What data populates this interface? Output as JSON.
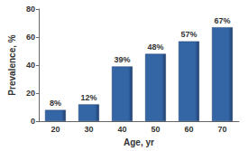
{
  "chart_data": {
    "type": "bar",
    "x_label": "Age, yr",
    "y_label": "Prevalence, %",
    "categories": [
      "20",
      "30",
      "40",
      "50",
      "60",
      "70"
    ],
    "values": [
      8,
      12,
      39,
      48,
      57,
      67
    ],
    "value_labels": [
      "8%",
      "12%",
      "39%",
      "48%",
      "57%",
      "67%"
    ],
    "color": "#3466a6",
    "ylim": [
      0,
      80
    ],
    "yticks": [
      0,
      20,
      40,
      60,
      80
    ],
    "grid": false,
    "data_labels": true
  }
}
